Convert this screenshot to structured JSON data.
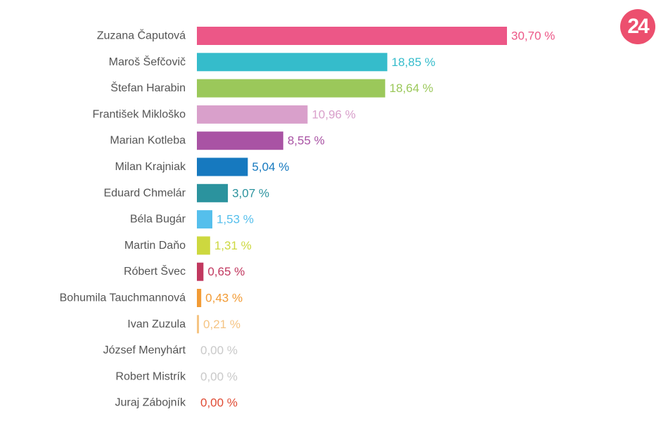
{
  "logo": {
    "text": "24",
    "color": "#ec4f6e"
  },
  "chart_data": {
    "type": "bar",
    "orientation": "horizontal",
    "title": "",
    "xlabel": "",
    "ylabel": "",
    "xlim": [
      0,
      30.7
    ],
    "grid": false,
    "legend": "none",
    "categories": [
      "Zuzana Čaputová",
      "Maroš Šefčovič",
      "Štefan Harabin",
      "František Mikloško",
      "Marian Kotleba",
      "Milan Krajniak",
      "Eduard Chmelár",
      "Béla Bugár",
      "Martin Daňo",
      "Róbert Švec",
      "Bohumila Tauchmannová",
      "Ivan Zuzula",
      "József Menyhárt",
      "Robert Mistrík",
      "Juraj Zábojník"
    ],
    "values": [
      30.7,
      18.85,
      18.64,
      10.96,
      8.55,
      5.04,
      3.07,
      1.53,
      1.31,
      0.65,
      0.43,
      0.21,
      0.0,
      0.0,
      0.0
    ],
    "value_labels": [
      "30,70 %",
      "18,85 %",
      "18,64 %",
      "10,96 %",
      "8,55 %",
      "5,04 %",
      "3,07 %",
      "1,53 %",
      "1,31 %",
      "0,65 %",
      "0,43 %",
      "0,21 %",
      "0,00 %",
      "0,00 %",
      "0,00 %"
    ],
    "colors": [
      "#ec5787",
      "#35bccb",
      "#9bc85a",
      "#d9a0cb",
      "#a953a4",
      "#1679bf",
      "#2b939e",
      "#55bfec",
      "#cdd83f",
      "#c1385f",
      "#f29b35",
      "#f5c483",
      "#c9c9c9",
      "#c9c9c9",
      "#e04b34"
    ],
    "label_colors": [
      "#ec5787",
      "#35bccb",
      "#9bc85a",
      "#d9a0cb",
      "#a953a4",
      "#1679bf",
      "#2b939e",
      "#55bfec",
      "#cdd83f",
      "#c1385f",
      "#f29b35",
      "#f5c483",
      "#c9c9c9",
      "#c9c9c9",
      "#e04b34"
    ]
  }
}
